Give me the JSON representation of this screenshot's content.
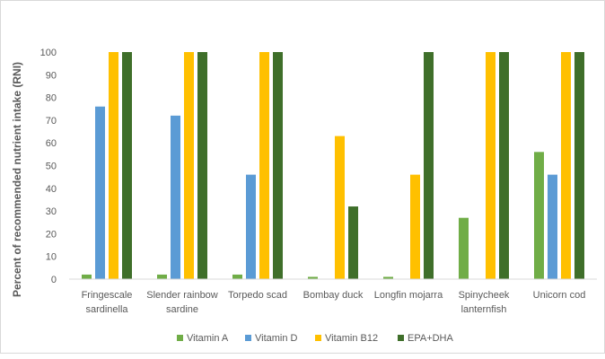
{
  "chart_data": {
    "type": "bar",
    "title": "",
    "xlabel": "",
    "ylabel": "Percent of recommended nutrient intake (RNI)",
    "ylim": [
      0,
      100
    ],
    "yticks": [
      0,
      10,
      20,
      30,
      40,
      50,
      60,
      70,
      80,
      90,
      100
    ],
    "grid": false,
    "legend_position": "bottom",
    "categories": [
      [
        "Fringescale",
        "sardinella"
      ],
      [
        "Slender rainbow",
        "sardine"
      ],
      [
        "Torpedo scad"
      ],
      [
        "Bombay duck"
      ],
      [
        "Longfin mojarra"
      ],
      [
        "Spinycheek",
        "lanternfish"
      ],
      [
        "Unicorn cod"
      ]
    ],
    "series": [
      {
        "name": "Vitamin A",
        "color": "#70ad47",
        "values": [
          2,
          2,
          2,
          1,
          1,
          27,
          56
        ]
      },
      {
        "name": "Vitamin D",
        "color": "#5b9bd5",
        "values": [
          76,
          72,
          46,
          0,
          0,
          0,
          46
        ]
      },
      {
        "name": "Vitamin B12",
        "color": "#ffc000",
        "values": [
          100,
          100,
          100,
          63,
          46,
          100,
          100
        ]
      },
      {
        "name": "EPA+DHA",
        "color": "#3f6f2a",
        "values": [
          100,
          100,
          100,
          32,
          100,
          100,
          100
        ]
      }
    ]
  }
}
